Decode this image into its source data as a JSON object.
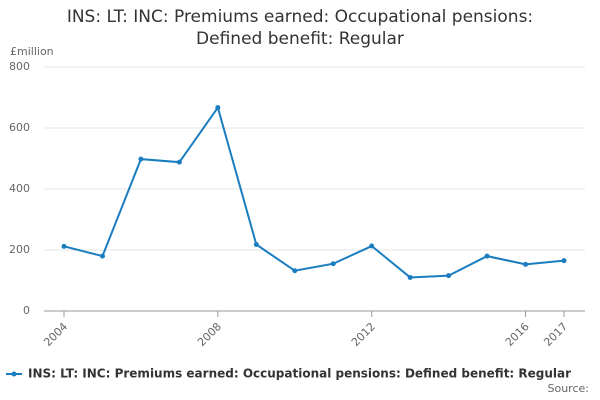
{
  "chart_data": {
    "type": "line",
    "title": "INS: LT: INC: Premiums earned: Occupational pensions: Defined benefit: Regular",
    "y_label": "£million",
    "source": "Source:",
    "x": [
      2004,
      2005,
      2006,
      2007,
      2008,
      2009,
      2010,
      2011,
      2012,
      2013,
      2014,
      2015,
      2016,
      2017
    ],
    "series": [
      {
        "name": "INS: LT: INC: Premiums earned: Occupational pensions: Defined benefit: Regular",
        "color": "#1a7dc0",
        "values": [
          212,
          180,
          498,
          488,
          667,
          218,
          132,
          155,
          213,
          110,
          116,
          180,
          153,
          165
        ]
      }
    ],
    "xlim": [
      2004,
      2017
    ],
    "xticks": [
      2004,
      2008,
      2012,
      2016,
      2017
    ],
    "ylim": [
      0,
      800
    ],
    "yticks": [
      0,
      200,
      400,
      600,
      800
    ],
    "grid": true,
    "legend": "bottom"
  }
}
